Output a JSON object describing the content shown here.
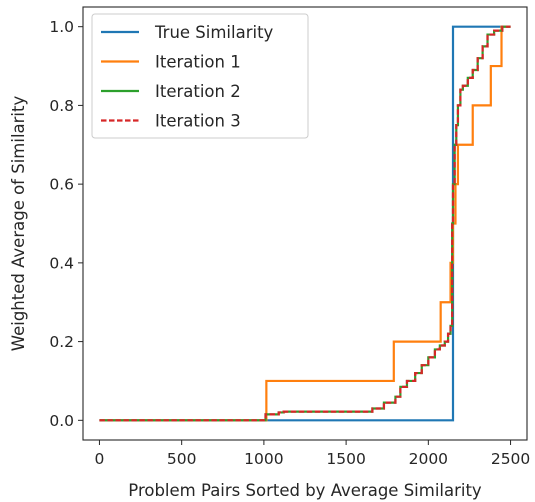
{
  "chart_data": {
    "type": "line",
    "xlabel": "Problem Pairs Sorted by Average Similarity",
    "ylabel": "Weighted Average of Similarity",
    "xlim": [
      -100,
      2600
    ],
    "ylim": [
      -0.05,
      1.05
    ],
    "xticks": [
      0,
      500,
      1000,
      1500,
      2000,
      2500
    ],
    "yticks": [
      0.0,
      0.2,
      0.4,
      0.6,
      0.8,
      1.0
    ],
    "xtick_labels": [
      "0",
      "500",
      "1000",
      "1500",
      "2000",
      "2500"
    ],
    "ytick_labels": [
      "0.0",
      "0.2",
      "0.4",
      "0.6",
      "0.8",
      "1.0"
    ],
    "grid": false,
    "legend_position": "top-left",
    "series": [
      {
        "name": "True Similarity",
        "color": "#1f77b4",
        "dash": "solid",
        "step": true,
        "x": [
          0,
          2150,
          2150,
          2500
        ],
        "y": [
          0.0,
          0.0,
          1.0,
          1.0
        ]
      },
      {
        "name": "Iteration 1",
        "color": "#ff7f0e",
        "dash": "solid",
        "step": true,
        "x": [
          0,
          1015,
          1015,
          1790,
          1790,
          2075,
          2075,
          2135,
          2135,
          2150,
          2150,
          2165,
          2165,
          2180,
          2180,
          2270,
          2270,
          2380,
          2380,
          2445,
          2445,
          2500
        ],
        "y": [
          0.0,
          0.0,
          0.1,
          0.1,
          0.2,
          0.2,
          0.3,
          0.3,
          0.4,
          0.4,
          0.5,
          0.5,
          0.6,
          0.6,
          0.7,
          0.7,
          0.8,
          0.8,
          0.9,
          0.9,
          1.0,
          1.0
        ]
      },
      {
        "name": "Iteration 2",
        "color": "#2ca02c",
        "dash": "solid",
        "step": true,
        "x": [
          0,
          1010,
          1010,
          1090,
          1090,
          1120,
          1120,
          1660,
          1660,
          1730,
          1730,
          1800,
          1800,
          1830,
          1830,
          1870,
          1870,
          1920,
          1920,
          1960,
          1960,
          2000,
          2000,
          2040,
          2040,
          2070,
          2070,
          2100,
          2100,
          2120,
          2120,
          2135,
          2135,
          2145,
          2145,
          2150,
          2150,
          2160,
          2160,
          2170,
          2170,
          2180,
          2180,
          2195,
          2195,
          2210,
          2210,
          2240,
          2240,
          2270,
          2270,
          2300,
          2300,
          2330,
          2330,
          2360,
          2360,
          2400,
          2400,
          2450,
          2450,
          2500
        ],
        "y": [
          0.0,
          0.0,
          0.015,
          0.015,
          0.02,
          0.02,
          0.022,
          0.022,
          0.03,
          0.03,
          0.045,
          0.045,
          0.06,
          0.06,
          0.085,
          0.085,
          0.1,
          0.1,
          0.12,
          0.12,
          0.14,
          0.14,
          0.16,
          0.16,
          0.18,
          0.18,
          0.19,
          0.19,
          0.2,
          0.2,
          0.22,
          0.22,
          0.24,
          0.24,
          0.5,
          0.5,
          0.6,
          0.6,
          0.7,
          0.7,
          0.75,
          0.75,
          0.8,
          0.8,
          0.84,
          0.84,
          0.85,
          0.85,
          0.87,
          0.87,
          0.89,
          0.89,
          0.92,
          0.92,
          0.95,
          0.95,
          0.98,
          0.98,
          0.99,
          0.99,
          1.0,
          1.0
        ]
      },
      {
        "name": "Iteration 3",
        "color": "#d62728",
        "dash": "dashed",
        "step": true,
        "x": [
          0,
          1010,
          1010,
          1090,
          1090,
          1120,
          1120,
          1660,
          1660,
          1730,
          1730,
          1800,
          1800,
          1830,
          1830,
          1870,
          1870,
          1920,
          1920,
          1960,
          1960,
          2000,
          2000,
          2040,
          2040,
          2070,
          2070,
          2100,
          2100,
          2120,
          2120,
          2135,
          2135,
          2145,
          2145,
          2150,
          2150,
          2160,
          2160,
          2170,
          2170,
          2180,
          2180,
          2195,
          2195,
          2210,
          2210,
          2240,
          2240,
          2270,
          2270,
          2300,
          2300,
          2330,
          2330,
          2360,
          2360,
          2400,
          2400,
          2450,
          2450,
          2500
        ],
        "y": [
          0.0,
          0.0,
          0.015,
          0.015,
          0.02,
          0.02,
          0.022,
          0.022,
          0.03,
          0.03,
          0.045,
          0.045,
          0.06,
          0.06,
          0.085,
          0.085,
          0.1,
          0.1,
          0.12,
          0.12,
          0.14,
          0.14,
          0.16,
          0.16,
          0.18,
          0.18,
          0.19,
          0.19,
          0.2,
          0.2,
          0.22,
          0.22,
          0.24,
          0.24,
          0.5,
          0.5,
          0.6,
          0.6,
          0.7,
          0.7,
          0.75,
          0.75,
          0.8,
          0.8,
          0.84,
          0.84,
          0.85,
          0.85,
          0.87,
          0.87,
          0.89,
          0.89,
          0.92,
          0.92,
          0.95,
          0.95,
          0.98,
          0.98,
          0.99,
          0.99,
          1.0,
          1.0
        ]
      }
    ]
  }
}
